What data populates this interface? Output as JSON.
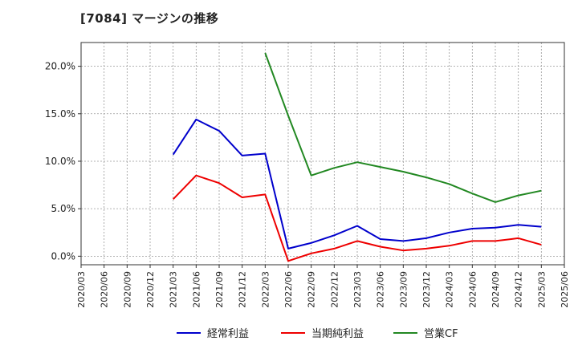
{
  "chart_data": {
    "type": "line",
    "title": "[7084]  マージンの推移",
    "xlabel": "",
    "ylabel": "",
    "ylim": [
      -0.9,
      22.5
    ],
    "yticks": [
      0.0,
      5.0,
      10.0,
      15.0,
      20.0
    ],
    "ytick_labels": [
      "0.0%",
      "5.0%",
      "10.0%",
      "15.0%",
      "20.0%"
    ],
    "grid": true,
    "legend_position": "bottom",
    "categories": [
      "2020/03",
      "2020/06",
      "2020/09",
      "2020/12",
      "2021/03",
      "2021/06",
      "2021/09",
      "2021/12",
      "2022/03",
      "2022/06",
      "2022/09",
      "2022/12",
      "2023/03",
      "2023/06",
      "2023/09",
      "2023/12",
      "2024/03",
      "2024/06",
      "2024/09",
      "2024/12",
      "2025/03",
      "2025/06"
    ],
    "series": [
      {
        "name": "経常利益",
        "color": "#0000cc",
        "values": [
          null,
          null,
          null,
          null,
          10.7,
          14.4,
          13.2,
          10.6,
          10.8,
          0.8,
          1.4,
          2.2,
          3.2,
          1.8,
          1.6,
          1.9,
          2.5,
          2.9,
          3.0,
          3.3,
          3.1,
          null
        ]
      },
      {
        "name": "当期純利益",
        "color": "#ee0000",
        "values": [
          null,
          null,
          null,
          null,
          6.0,
          8.5,
          7.7,
          6.2,
          6.5,
          -0.5,
          0.3,
          0.8,
          1.6,
          1.0,
          0.6,
          0.8,
          1.1,
          1.6,
          1.6,
          1.9,
          1.2,
          null
        ]
      },
      {
        "name": "営業CF",
        "color": "#228822",
        "values": [
          null,
          null,
          null,
          null,
          null,
          null,
          null,
          null,
          21.4,
          14.8,
          8.5,
          9.3,
          9.9,
          9.4,
          8.9,
          8.3,
          7.6,
          6.6,
          5.7,
          6.4,
          6.9,
          null
        ]
      }
    ]
  }
}
